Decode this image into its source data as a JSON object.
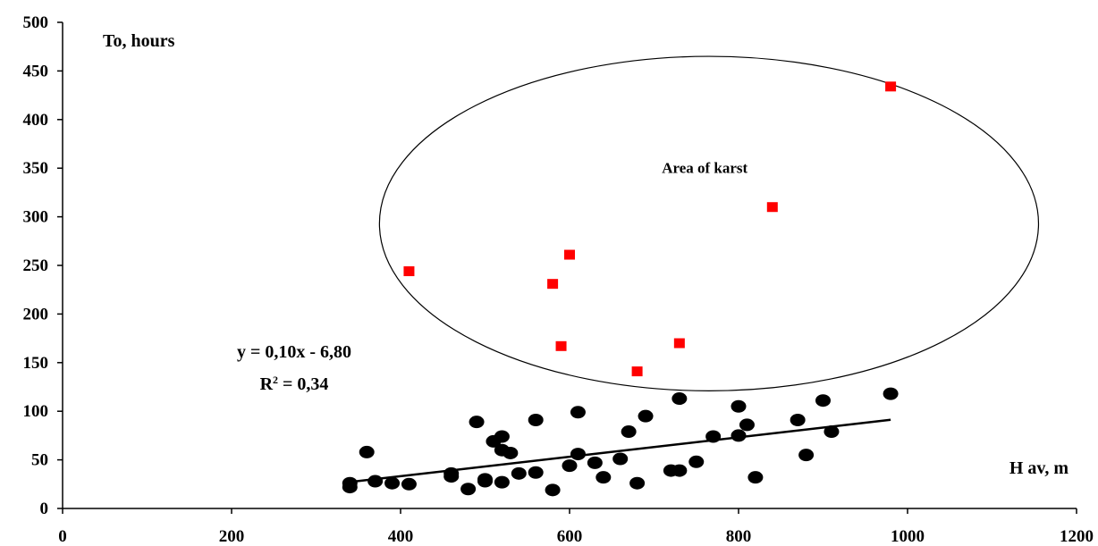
{
  "chart_data": {
    "type": "scatter",
    "ylabel": "To, hours",
    "xlabel": "H av, m",
    "xlim": [
      0,
      1200
    ],
    "ylim": [
      0,
      500
    ],
    "xticks": [
      "0",
      "200",
      "400",
      "600",
      "800",
      "1000",
      "1200"
    ],
    "yticks": [
      "0",
      "50",
      "100",
      "150",
      "200",
      "250",
      "300",
      "350",
      "400",
      "450",
      "500"
    ],
    "grid": false,
    "series": [
      {
        "marker": "circle",
        "color": "#000000",
        "points": [
          [
            340,
            26
          ],
          [
            340,
            22
          ],
          [
            360,
            58
          ],
          [
            370,
            28
          ],
          [
            390,
            26
          ],
          [
            410,
            25
          ],
          [
            460,
            36
          ],
          [
            460,
            33
          ],
          [
            480,
            20
          ],
          [
            490,
            89
          ],
          [
            500,
            30
          ],
          [
            500,
            28
          ],
          [
            510,
            69
          ],
          [
            520,
            74
          ],
          [
            520,
            60
          ],
          [
            520,
            27
          ],
          [
            530,
            57
          ],
          [
            540,
            36
          ],
          [
            560,
            91
          ],
          [
            560,
            37
          ],
          [
            580,
            19
          ],
          [
            600,
            44
          ],
          [
            610,
            99
          ],
          [
            610,
            56
          ],
          [
            630,
            47
          ],
          [
            640,
            32
          ],
          [
            660,
            51
          ],
          [
            670,
            79
          ],
          [
            680,
            26
          ],
          [
            690,
            95
          ],
          [
            720,
            39
          ],
          [
            730,
            113
          ],
          [
            730,
            39
          ],
          [
            750,
            48
          ],
          [
            770,
            74
          ],
          [
            800,
            105
          ],
          [
            800,
            75
          ],
          [
            810,
            86
          ],
          [
            820,
            32
          ],
          [
            870,
            91
          ],
          [
            880,
            55
          ],
          [
            900,
            111
          ],
          [
            910,
            79
          ],
          [
            980,
            118
          ]
        ]
      },
      {
        "marker": "square",
        "color": "#ff0000",
        "points": [
          [
            410,
            244
          ],
          [
            580,
            231
          ],
          [
            590,
            167
          ],
          [
            600,
            261
          ],
          [
            680,
            141
          ],
          [
            730,
            170
          ],
          [
            840,
            310
          ],
          [
            980,
            434
          ]
        ]
      }
    ],
    "trendline": {
      "x_start": 340,
      "x_end": 980,
      "slope": 0.1,
      "intercept": -6.8
    },
    "equation": "y = 0,10x - 6,80",
    "r2_prefix": "R",
    "r2_sup": "2",
    "r2_suffix": " = 0,34",
    "ellipse": {
      "center": [
        765,
        293
      ],
      "rx": 390,
      "ry": 172
    },
    "annotation": "Area of karst",
    "annotation_pos": [
      760,
      345
    ]
  }
}
